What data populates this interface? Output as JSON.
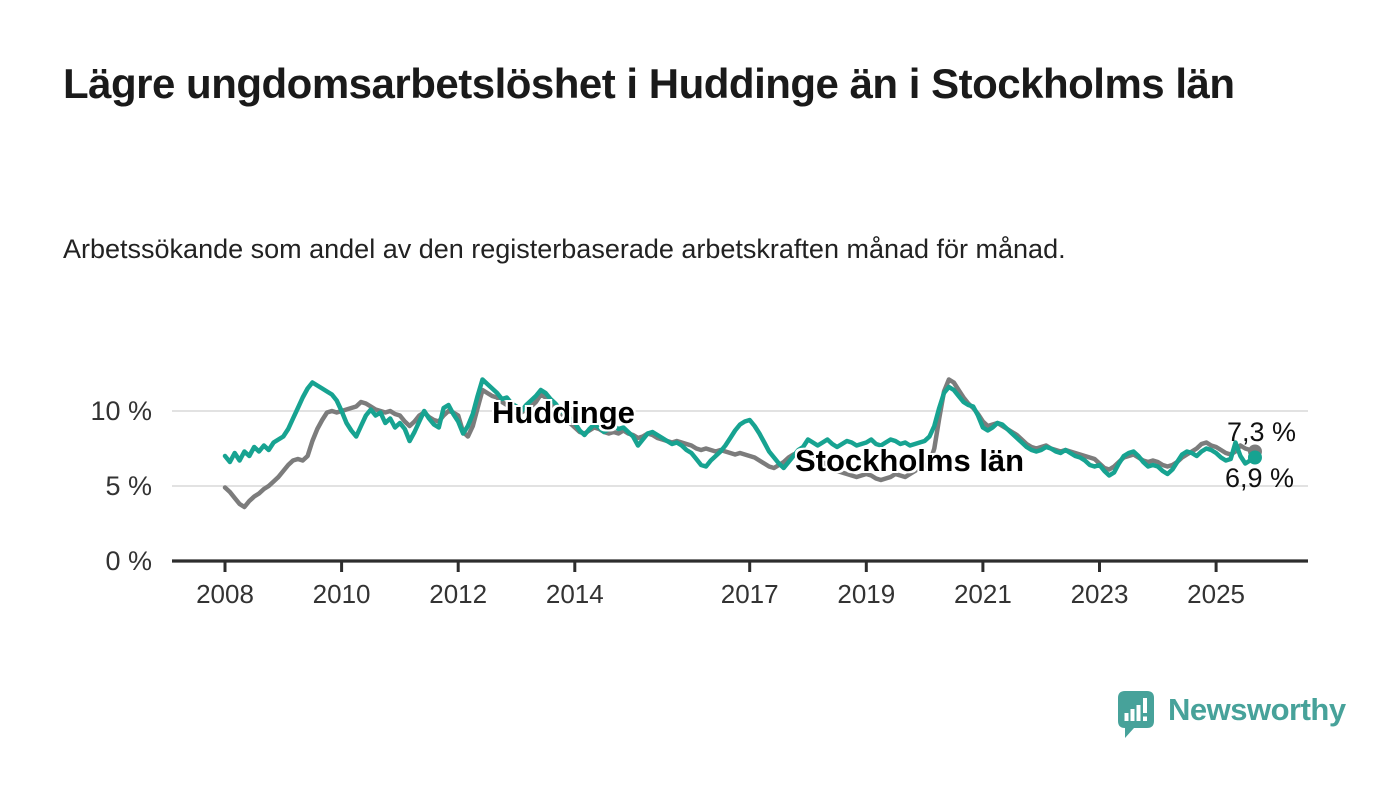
{
  "header": {
    "title": "Lägre ungdomsarbetslöshet i Huddinge än i Stockholms län",
    "subtitle": "Arbetssökande som andel av den registerbaserade arbetskraften månad för månad."
  },
  "chart_data": {
    "type": "line",
    "unit": "%",
    "start": "2008-01",
    "frequency": "monthly",
    "ylim": [
      0,
      13
    ],
    "grid": "horizontal-only",
    "y_ticks": [
      {
        "value": 0,
        "label": "0 %"
      },
      {
        "value": 5,
        "label": "5 %"
      },
      {
        "value": 10,
        "label": "10 %"
      }
    ],
    "grid_values": [
      5,
      10
    ],
    "x_ticks": [
      {
        "year": 2008,
        "label": "2008"
      },
      {
        "year": 2010,
        "label": "2010"
      },
      {
        "year": 2012,
        "label": "2012"
      },
      {
        "year": 2014,
        "label": "2014"
      },
      {
        "year": 2017,
        "label": "2017"
      },
      {
        "year": 2019,
        "label": "2019"
      },
      {
        "year": 2021,
        "label": "2021"
      },
      {
        "year": 2023,
        "label": "2023"
      },
      {
        "year": 2025,
        "label": "2025"
      }
    ],
    "series": [
      {
        "name": "Stockholms län",
        "color": "#7c7c7c",
        "end_value": 7.3,
        "end_label": "7,3 %",
        "values": [
          4.9,
          4.6,
          4.2,
          3.8,
          3.6,
          4.0,
          4.3,
          4.5,
          4.8,
          5.0,
          5.3,
          5.6,
          6.0,
          6.4,
          6.7,
          6.8,
          6.7,
          7.0,
          8.0,
          8.8,
          9.4,
          9.9,
          10.0,
          9.9,
          10.0,
          10.1,
          10.2,
          10.3,
          10.6,
          10.5,
          10.3,
          10.1,
          10.0,
          9.9,
          10.0,
          9.8,
          9.7,
          9.3,
          9.0,
          9.3,
          9.7,
          9.9,
          9.6,
          9.4,
          9.3,
          9.7,
          10.0,
          9.9,
          9.7,
          8.6,
          8.3,
          9.0,
          10.2,
          11.4,
          11.2,
          11.0,
          10.9,
          10.6,
          10.4,
          10.2,
          10.0,
          9.9,
          10.1,
          10.3,
          10.6,
          11.1,
          10.9,
          10.6,
          10.2,
          9.9,
          9.6,
          9.2,
          8.9,
          8.6,
          8.5,
          8.7,
          8.9,
          8.8,
          8.6,
          8.5,
          8.6,
          8.5,
          8.7,
          8.5,
          8.4,
          8.2,
          8.3,
          8.5,
          8.4,
          8.2,
          8.1,
          8.0,
          7.9,
          8.0,
          7.9,
          7.8,
          7.7,
          7.5,
          7.4,
          7.5,
          7.4,
          7.3,
          7.4,
          7.3,
          7.2,
          7.1,
          7.2,
          7.1,
          7.0,
          6.9,
          6.7,
          6.5,
          6.3,
          6.2,
          6.4,
          6.6,
          6.9,
          7.1,
          7.2,
          7.3,
          7.2,
          7.0,
          6.8,
          6.6,
          6.4,
          6.2,
          6.0,
          5.9,
          5.8,
          5.7,
          5.6,
          5.7,
          5.8,
          5.7,
          5.5,
          5.4,
          5.5,
          5.6,
          5.8,
          5.7,
          5.6,
          5.8,
          6.0,
          6.2,
          6.3,
          6.5,
          7.5,
          9.5,
          11.3,
          12.1,
          11.9,
          11.4,
          10.9,
          10.5,
          10.2,
          9.8,
          9.3,
          9.0,
          9.1,
          9.2,
          9.0,
          8.8,
          8.6,
          8.4,
          8.1,
          7.8,
          7.6,
          7.5,
          7.6,
          7.7,
          7.5,
          7.4,
          7.3,
          7.4,
          7.3,
          7.2,
          7.1,
          7.0,
          6.9,
          6.8,
          6.5,
          6.2,
          6.1,
          6.3,
          6.6,
          6.9,
          7.0,
          7.1,
          6.9,
          6.7,
          6.6,
          6.7,
          6.6,
          6.4,
          6.3,
          6.4,
          6.6,
          6.9,
          7.1,
          7.3,
          7.5,
          7.8,
          7.9,
          7.7,
          7.6,
          7.4,
          7.2,
          7.1,
          7.3,
          7.7,
          7.5,
          7.4,
          7.3
        ]
      },
      {
        "name": "Huddinge",
        "color": "#17a391",
        "end_value": 6.9,
        "end_label": "6,9 %",
        "values": [
          7.0,
          6.6,
          7.2,
          6.7,
          7.3,
          7.0,
          7.6,
          7.3,
          7.7,
          7.4,
          7.9,
          8.1,
          8.3,
          8.8,
          9.5,
          10.2,
          10.9,
          11.5,
          11.9,
          11.7,
          11.5,
          11.3,
          11.1,
          10.7,
          10.0,
          9.2,
          8.7,
          8.3,
          9.0,
          9.7,
          10.1,
          9.7,
          9.9,
          9.2,
          9.5,
          8.9,
          9.2,
          8.8,
          8.0,
          8.6,
          9.3,
          10.0,
          9.5,
          9.1,
          8.9,
          10.2,
          10.4,
          9.8,
          9.3,
          8.5,
          9.0,
          9.8,
          11.0,
          12.1,
          11.8,
          11.5,
          11.2,
          10.8,
          10.9,
          10.5,
          10.3,
          10.0,
          10.4,
          10.7,
          11.0,
          11.4,
          11.2,
          10.8,
          10.5,
          10.1,
          9.8,
          9.5,
          9.2,
          8.7,
          8.4,
          8.8,
          9.1,
          8.9,
          8.6,
          8.8,
          9.0,
          8.8,
          8.9,
          8.6,
          8.3,
          7.7,
          8.1,
          8.5,
          8.6,
          8.4,
          8.2,
          8.0,
          7.8,
          7.9,
          7.7,
          7.4,
          7.2,
          6.8,
          6.4,
          6.3,
          6.7,
          7.0,
          7.3,
          7.7,
          8.2,
          8.7,
          9.1,
          9.3,
          9.4,
          9.0,
          8.5,
          7.9,
          7.3,
          6.9,
          6.5,
          6.2,
          6.6,
          7.0,
          7.4,
          7.6,
          8.1,
          7.9,
          7.7,
          7.9,
          8.1,
          7.8,
          7.6,
          7.8,
          8.0,
          7.9,
          7.7,
          7.8,
          7.9,
          8.1,
          7.8,
          7.7,
          7.9,
          8.1,
          8.0,
          7.8,
          7.9,
          7.7,
          7.8,
          7.9,
          8.0,
          8.3,
          9.0,
          10.2,
          11.2,
          11.6,
          11.4,
          11.0,
          10.6,
          10.4,
          10.3,
          9.7,
          8.9,
          8.7,
          8.9,
          9.2,
          9.1,
          8.8,
          8.5,
          8.2,
          7.9,
          7.6,
          7.4,
          7.3,
          7.4,
          7.6,
          7.5,
          7.3,
          7.2,
          7.4,
          7.2,
          7.0,
          6.9,
          6.7,
          6.4,
          6.3,
          6.4,
          6.0,
          5.7,
          5.9,
          6.5,
          7.0,
          7.2,
          7.3,
          7.0,
          6.6,
          6.3,
          6.4,
          6.3,
          6.0,
          5.8,
          6.1,
          6.6,
          7.1,
          7.3,
          7.2,
          7.0,
          7.3,
          7.5,
          7.4,
          7.2,
          6.9,
          6.7,
          6.8,
          7.9,
          7.0,
          6.5,
          6.7,
          6.9
        ]
      }
    ]
  },
  "colors": {
    "huddinge": "#17a391",
    "stockholm": "#7c7c7c",
    "gridline": "#d9d9d9",
    "axis": "#2d2d2d",
    "tick_text": "#333333",
    "logo_teal": "#47a29a"
  },
  "footer": {
    "brand": "Newsworthy"
  }
}
